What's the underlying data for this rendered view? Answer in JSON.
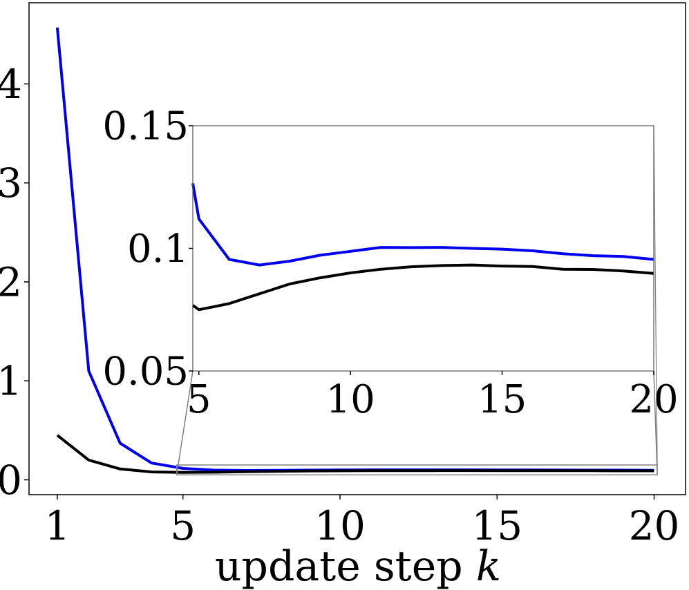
{
  "chart_data": [
    {
      "type": "line",
      "panel": "main",
      "title": "",
      "xlabel": "update step",
      "xlabel_var": "k",
      "ylabel": "",
      "xlim": [
        0.1,
        21.0
      ],
      "ylim": [
        -0.15,
        4.82
      ],
      "xticks": [
        1,
        5,
        10,
        15,
        20
      ],
      "yticks": [
        0,
        1,
        2,
        3,
        4
      ],
      "grid": false,
      "x": [
        1,
        2,
        3,
        4,
        5,
        6,
        7,
        8,
        9,
        10,
        11,
        12,
        13,
        14,
        15,
        16,
        17,
        18,
        19,
        20
      ],
      "series": [
        {
          "color": "#0000ee",
          "values": [
            4.57,
            1.1,
            0.37,
            0.17,
            0.115,
            0.098,
            0.094,
            0.096,
            0.098,
            0.0995,
            0.1005,
            0.1005,
            0.1005,
            0.1003,
            0.1001,
            0.0995,
            0.0985,
            0.0978,
            0.0975,
            0.0965
          ]
        },
        {
          "color": "#000000",
          "values": [
            0.45,
            0.2,
            0.11,
            0.08,
            0.075,
            0.077,
            0.082,
            0.086,
            0.089,
            0.091,
            0.092,
            0.093,
            0.093,
            0.0935,
            0.093,
            0.0928,
            0.092,
            0.092,
            0.091,
            0.0905
          ]
        }
      ],
      "zoom_rect": {
        "x": [
          4.8,
          20.1
        ],
        "y": [
          0.05,
          0.15
        ]
      }
    },
    {
      "type": "line",
      "panel": "inset",
      "title": "",
      "xlabel": "",
      "ylabel": "",
      "xlim": [
        4.8,
        20.0
      ],
      "ylim": [
        0.05,
        0.15
      ],
      "xticks": [
        5,
        10,
        15,
        20
      ],
      "yticks": [
        0.05,
        0.1,
        0.15
      ],
      "ytick_labels": [
        "0.05",
        "0.1",
        "0.15"
      ],
      "grid": false,
      "x": [
        4.8,
        5,
        6,
        7,
        8,
        9,
        10,
        11,
        12,
        13,
        14,
        15,
        16,
        17,
        18,
        19,
        20
      ],
      "series": [
        {
          "color": "#0000ee",
          "values": [
            0.1265,
            0.112,
            0.0955,
            0.0932,
            0.0948,
            0.0972,
            0.0988,
            0.1004,
            0.1003,
            0.1004,
            0.1,
            0.0997,
            0.099,
            0.0978,
            0.097,
            0.0967,
            0.0955
          ]
        },
        {
          "color": "#000000",
          "values": [
            0.0768,
            0.075,
            0.0775,
            0.0815,
            0.0855,
            0.088,
            0.09,
            0.0915,
            0.0925,
            0.093,
            0.0932,
            0.0928,
            0.0926,
            0.0915,
            0.0914,
            0.0908,
            0.0898
          ]
        }
      ]
    }
  ]
}
